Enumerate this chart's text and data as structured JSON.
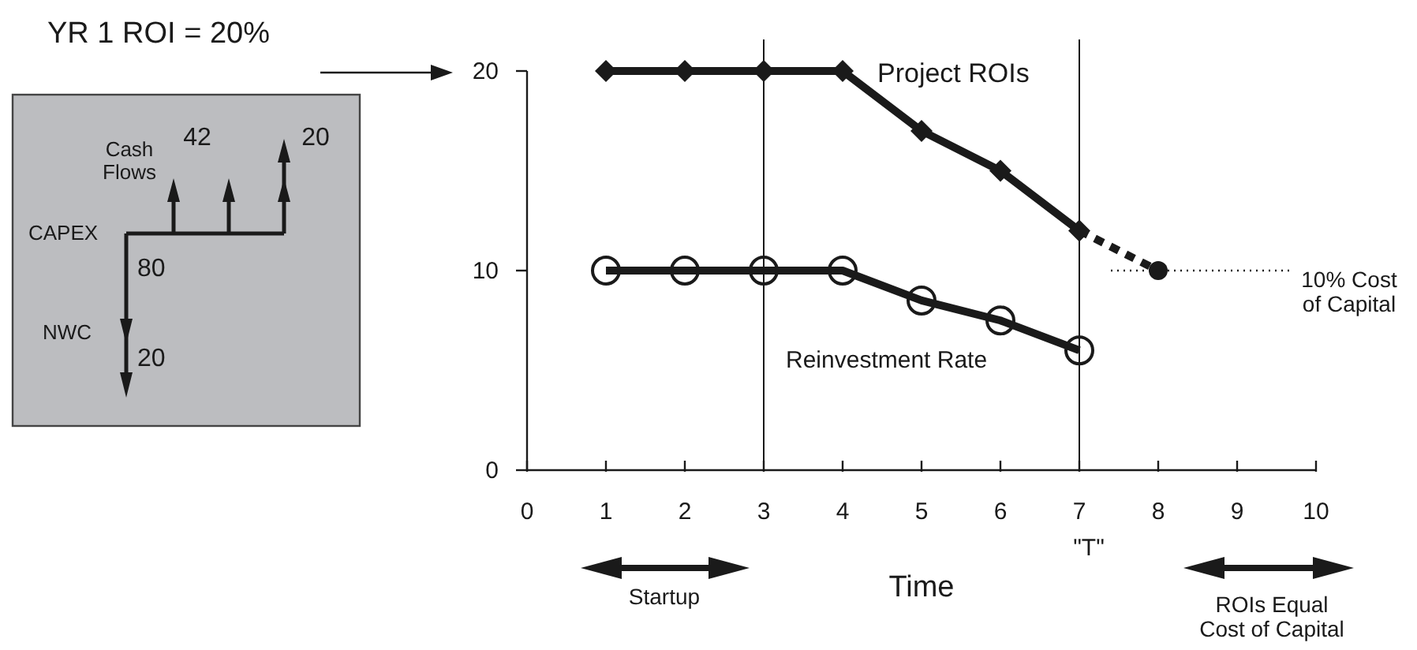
{
  "chart_data": {
    "type": "line",
    "xlabel": "Time",
    "xlim": [
      0,
      10
    ],
    "xticks": [
      0,
      1,
      2,
      3,
      4,
      5,
      6,
      7,
      8,
      9,
      10
    ],
    "ylim": [
      0,
      20
    ],
    "yticks": [
      0,
      10,
      20
    ],
    "grid": false,
    "series": [
      {
        "name": "Project ROIs",
        "color": "#1a1a1a",
        "x": [
          1,
          2,
          3,
          4,
          5,
          6,
          7
        ],
        "values": [
          20,
          20,
          20,
          20,
          17,
          15,
          12
        ],
        "marker": "diamond",
        "line_style": "solid"
      },
      {
        "color": "#1a1a1a",
        "x": [
          7,
          8
        ],
        "values": [
          12,
          10
        ],
        "marker": "none",
        "line_style": "dashed"
      },
      {
        "type": "scatter",
        "color": "#1a1a1a",
        "x": [
          8
        ],
        "values": [
          10
        ],
        "marker": "circle"
      },
      {
        "name": "10% Cost of Capital",
        "color": "#1a1a1a",
        "x": [
          7.4,
          9.7
        ],
        "values": [
          10,
          10
        ],
        "marker": "none",
        "line_style": "dotted"
      },
      {
        "name": "Reinvestment Rate",
        "color": "#1a1a1a",
        "x": [
          1,
          2,
          3,
          4,
          5,
          6,
          7
        ],
        "values": [
          10,
          10,
          10,
          10,
          8.5,
          7.5,
          6
        ],
        "marker": "circle",
        "line_style": "solid"
      }
    ],
    "ref_lines": [
      {
        "axis": "x",
        "value": 3,
        "color": "#1a1a1a",
        "line_style": "solid"
      },
      {
        "axis": "x",
        "value": 7,
        "color": "#1a1a1a",
        "line_style": "solid"
      }
    ],
    "annotations": [
      "YR 1 ROI = 20%",
      "Cash Flows",
      "42",
      "20",
      "CAPEX",
      "80",
      "NWC",
      "20",
      "\"T\"",
      "Startup",
      "ROIs Equal Cost of Capital"
    ]
  }
}
